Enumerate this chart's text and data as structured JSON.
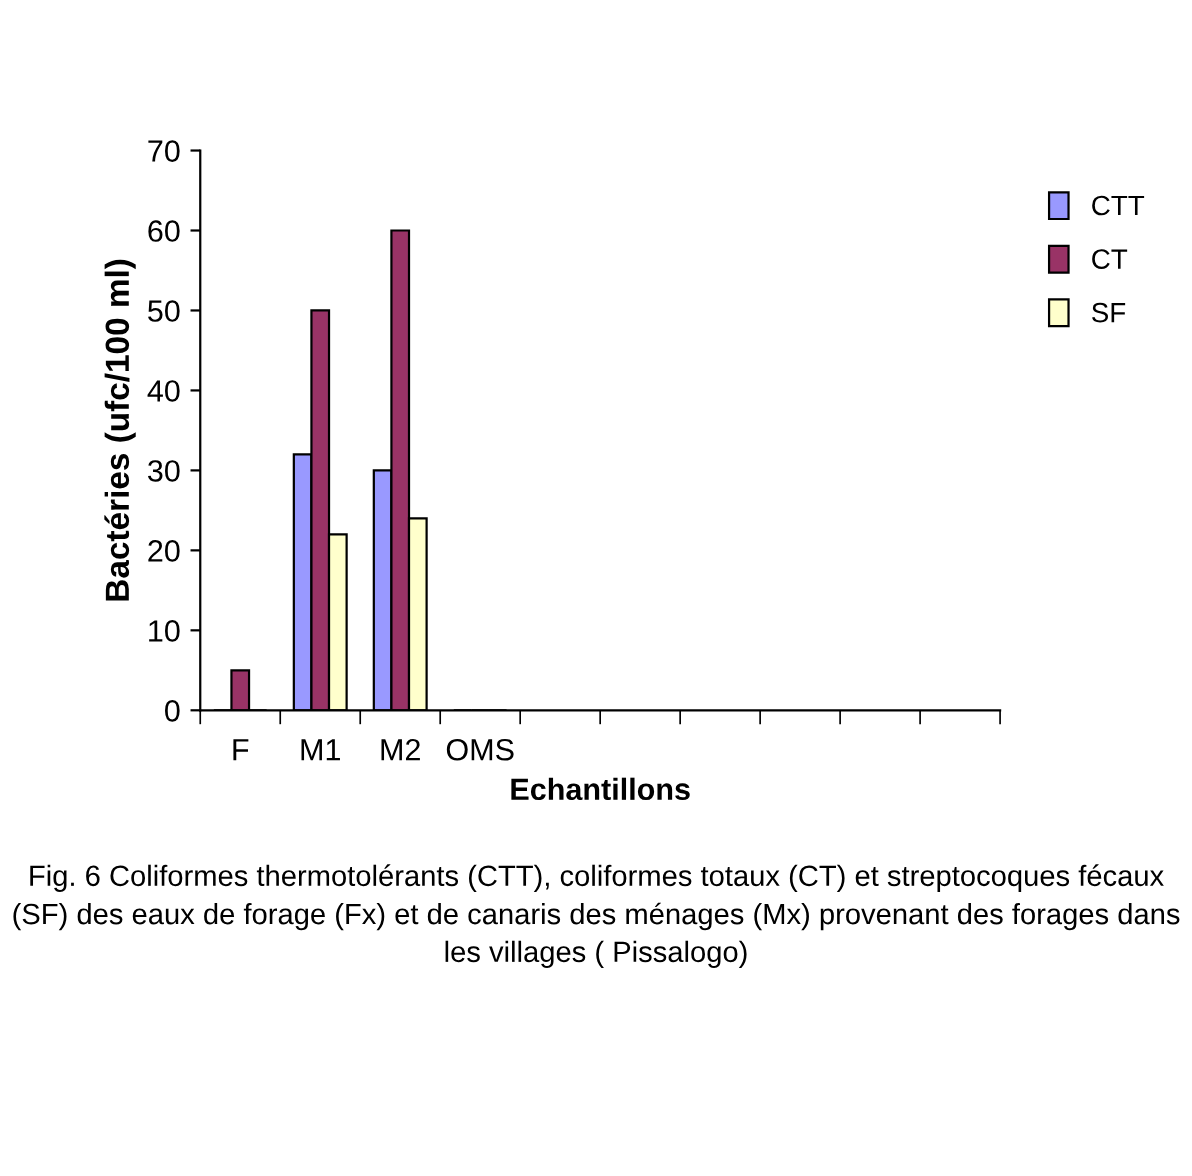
{
  "chart_data": {
    "type": "bar",
    "categories": [
      "F",
      "M1",
      "M2",
      "OMS",
      null,
      null,
      null,
      null,
      null,
      null
    ],
    "series": [
      {
        "name": "CTT",
        "color": "#9999ff",
        "values": [
          0,
          32,
          30,
          0,
          null,
          null,
          null,
          null,
          null,
          null
        ]
      },
      {
        "name": "CT",
        "color": "#993366",
        "values": [
          5,
          50,
          60,
          0,
          null,
          null,
          null,
          null,
          null,
          null
        ]
      },
      {
        "name": "SF",
        "color": "#ffffcc",
        "values": [
          0,
          22,
          24,
          0,
          null,
          null,
          null,
          null,
          null,
          null
        ]
      }
    ],
    "xlabel": "Echantillons",
    "ylabel": "Bactéries (ufc/100 ml)",
    "ylim": [
      0,
      70
    ],
    "yticks": [
      0,
      10,
      20,
      30,
      40,
      50,
      60,
      70
    ],
    "grid": false,
    "legend": "right",
    "annotations": [
      "Fig. 6 Coliformes thermotolérants (CTT), coliformes totaux (CT) et streptocoques fécaux (SF) des eaux de forage (Fx) et de canaris des ménages (Mx) provenant des forages dans les villages ( Pissalogo)"
    ]
  }
}
